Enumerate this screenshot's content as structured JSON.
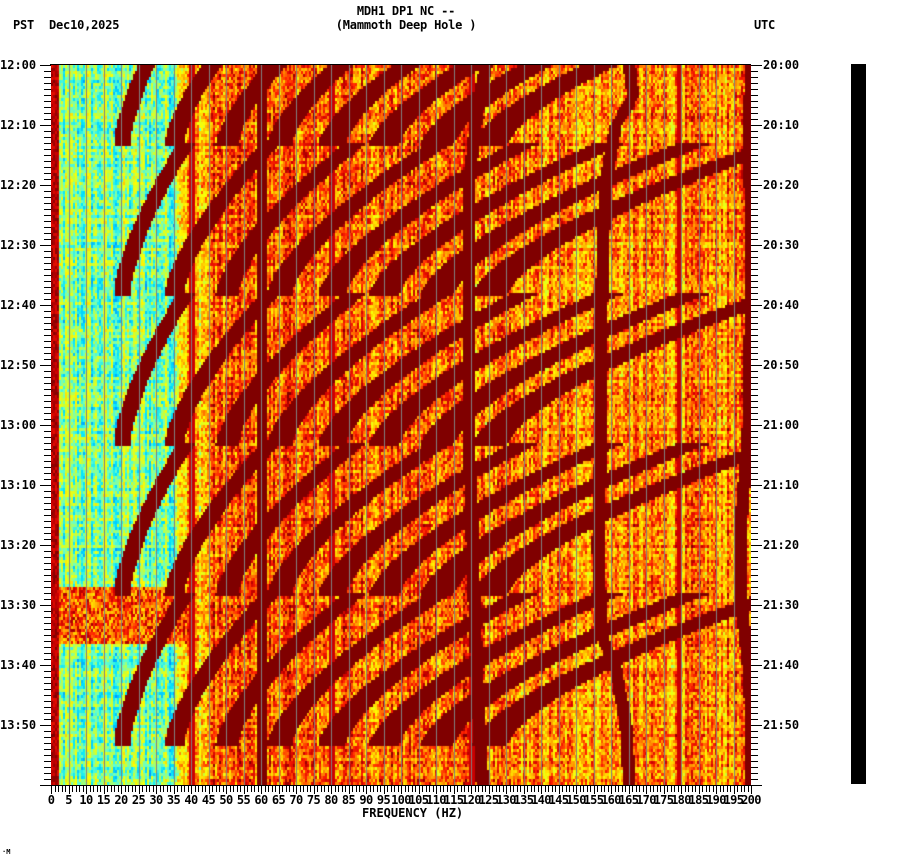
{
  "header": {
    "station_line": "MDH1 DP1 NC --",
    "site_line": "(Mammoth Deep Hole )",
    "left_timezone": "PST",
    "date": "Dec10,2025",
    "right_timezone": "UTC"
  },
  "footer_mark": "·M",
  "colors": {
    "background": "#ffffff",
    "axis": "#000000",
    "gridline": "#808080",
    "colormap": [
      "#0066ff",
      "#00a0ff",
      "#00e5ff",
      "#66ffcc",
      "#ccff33",
      "#ffff00",
      "#ffcc00",
      "#ff8000",
      "#ff2000",
      "#cc0000",
      "#800000"
    ],
    "side_bar": "#000000"
  },
  "chart_data": {
    "type": "heatmap",
    "title": "MDH1 DP1 NC -- (Mammoth Deep Hole )",
    "subtitle": "Dec10,2025",
    "xlabel": "FREQUENCY (HZ)",
    "ylabel_left": "PST",
    "ylabel_right": "UTC",
    "xlim": [
      0,
      200
    ],
    "x_ticks": [
      0,
      5,
      10,
      15,
      20,
      25,
      30,
      35,
      40,
      45,
      50,
      55,
      60,
      65,
      70,
      75,
      80,
      85,
      90,
      95,
      100,
      105,
      110,
      115,
      120,
      125,
      130,
      135,
      140,
      145,
      150,
      155,
      160,
      165,
      170,
      175,
      180,
      185,
      190,
      195,
      200
    ],
    "x_minor_tick_step_hz": 1,
    "y_time_range_minutes": 120,
    "y_ticks_left": [
      "12:00",
      "12:10",
      "12:20",
      "12:30",
      "12:40",
      "12:50",
      "13:00",
      "13:10",
      "13:20",
      "13:30",
      "13:40",
      "13:50"
    ],
    "y_ticks_right": [
      "20:00",
      "20:10",
      "20:20",
      "20:30",
      "20:40",
      "20:50",
      "21:00",
      "21:10",
      "21:20",
      "21:30",
      "21:40",
      "21:50"
    ],
    "y_minor_tick_step_minutes": 1,
    "grid": "vertical lines every 5 Hz",
    "colorscale": "jet (blue = low power, dark red = high power)",
    "features": {
      "low_power_band_hz": [
        0,
        40
      ],
      "persistent_lines_hz": [
        1,
        40,
        60,
        80,
        120,
        179
      ],
      "wandering_lines": [
        {
          "name": "drifting-line-160hz",
          "points": [
            [
              0,
              165
            ],
            [
              5,
              166
            ],
            [
              10,
              161
            ],
            [
              20,
              158
            ],
            [
              40,
              157
            ],
            [
              60,
              157
            ],
            [
              80,
              156
            ],
            [
              95,
              157
            ],
            [
              100,
              161
            ],
            [
              110,
              164
            ],
            [
              120,
              165
            ]
          ]
        },
        {
          "name": "drifting-line-199hz",
          "points": [
            [
              0,
              200
            ],
            [
              10,
              199
            ],
            [
              30,
              200
            ],
            [
              60,
              199
            ],
            [
              75,
              197
            ],
            [
              90,
              197
            ],
            [
              100,
              199
            ],
            [
              110,
              200
            ],
            [
              120,
              200
            ]
          ]
        },
        {
          "name": "drifting-line-124hz",
          "points": [
            [
              0,
              124
            ],
            [
              5,
              122
            ],
            [
              20,
              119
            ],
            [
              60,
              119
            ],
            [
              95,
              121
            ],
            [
              120,
              123
            ]
          ]
        }
      ],
      "sweep_cycle_minutes": 25,
      "sweep_cycle_starts_minutes": [
        -12,
        13,
        38,
        63,
        88
      ],
      "sweep_start_freq_hz": 20,
      "sweep_harmonic_count": 8,
      "sweep_harmonic_spacing_hz": 15,
      "high_power_events_minutes": [
        [
          87,
          96
        ]
      ]
    }
  }
}
